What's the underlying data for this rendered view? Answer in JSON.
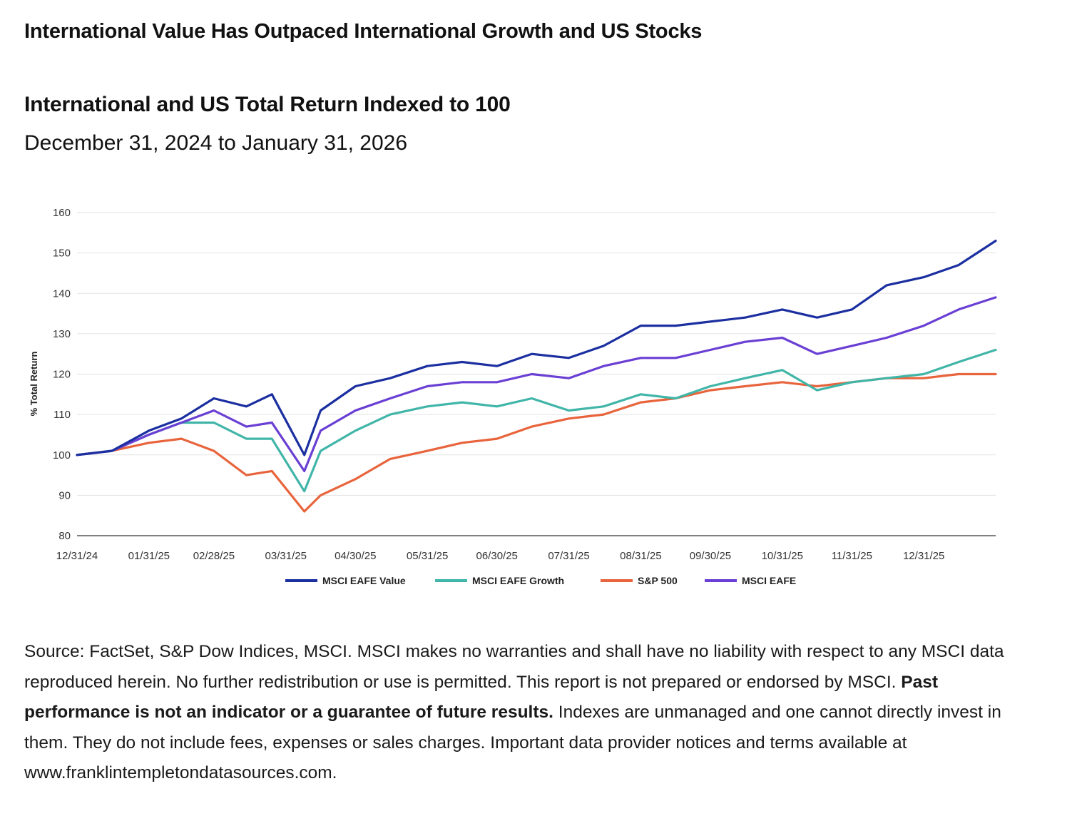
{
  "headline": "International Value Has Outpaced International Growth and US Stocks",
  "chart_title": "International and US Total Return Indexed to 100",
  "chart_subtitle": "December 31, 2024 to January 31, 2026",
  "footnote": {
    "part1": "Source: FactSet, S&P Dow Indices, MSCI. MSCI makes no warranties and shall have no liability with respect to any MSCI data reproduced herein. No further redistribution or use is permitted. This report is not prepared or endorsed by MSCI. ",
    "bold": "Past performance is not an indicator or a guarantee of future results.",
    "part2": " Indexes are unmanaged and one cannot directly invest in them. They do not include fees, expenses or sales charges. Important data provider notices and terms available at www.franklintempletondatasources.com."
  },
  "chart_data": {
    "type": "line",
    "title": "",
    "xlabel": "",
    "ylabel": "% Total Return",
    "ylim": [
      80,
      160
    ],
    "yticks": [
      80,
      90,
      100,
      110,
      120,
      130,
      140,
      150,
      160
    ],
    "xlim": [
      "12/31/24",
      "01/31/26"
    ],
    "xticks": [
      "12/31/24",
      "01/31/25",
      "02/28/25",
      "03/31/25",
      "04/30/25",
      "05/31/25",
      "06/30/25",
      "07/31/25",
      "08/31/25",
      "09/30/25",
      "10/31/25",
      "11/31/25",
      "12/31/25"
    ],
    "grid": true,
    "legend_position": "bottom",
    "x": [
      "12/31/24",
      "01/15/25",
      "01/31/25",
      "02/14/25",
      "02/28/25",
      "03/14/25",
      "03/25/25",
      "04/08/25",
      "04/15/25",
      "04/30/25",
      "05/15/25",
      "05/31/25",
      "06/15/25",
      "06/30/25",
      "07/15/25",
      "07/31/25",
      "08/15/25",
      "08/31/25",
      "09/15/25",
      "09/30/25",
      "10/15/25",
      "10/31/25",
      "11/15/25",
      "11/31/25",
      "12/15/25",
      "12/31/25",
      "01/15/26",
      "01/31/26"
    ],
    "series": [
      {
        "name": "MSCI EAFE Value",
        "color": "#1b2fa0",
        "values": [
          100,
          101,
          106,
          109,
          114,
          112,
          115,
          100,
          111,
          117,
          119,
          122,
          123,
          122,
          125,
          124,
          127,
          132,
          132,
          133,
          134,
          136,
          134,
          136,
          142,
          144,
          147,
          153
        ]
      },
      {
        "name": "MSCI EAFE Growth",
        "color": "#40b5a8",
        "values": [
          100,
          101,
          105,
          108,
          108,
          104,
          104,
          91,
          101,
          106,
          110,
          112,
          113,
          112,
          114,
          111,
          112,
          115,
          114,
          117,
          119,
          121,
          116,
          118,
          119,
          120,
          123,
          126
        ]
      },
      {
        "name": "S&P 500",
        "color": "#e8643c",
        "values": [
          100,
          101,
          103,
          104,
          101,
          95,
          96,
          86,
          90,
          94,
          99,
          101,
          103,
          104,
          107,
          109,
          110,
          113,
          114,
          116,
          117,
          118,
          117,
          118,
          119,
          119,
          120,
          120
        ]
      },
      {
        "name": "MSCI EAFE",
        "color": "#6a3fd4",
        "values": [
          100,
          101,
          105,
          108,
          111,
          107,
          108,
          96,
          106,
          111,
          114,
          117,
          118,
          118,
          120,
          119,
          122,
          124,
          124,
          126,
          128,
          129,
          125,
          127,
          129,
          132,
          136,
          139
        ]
      }
    ]
  }
}
